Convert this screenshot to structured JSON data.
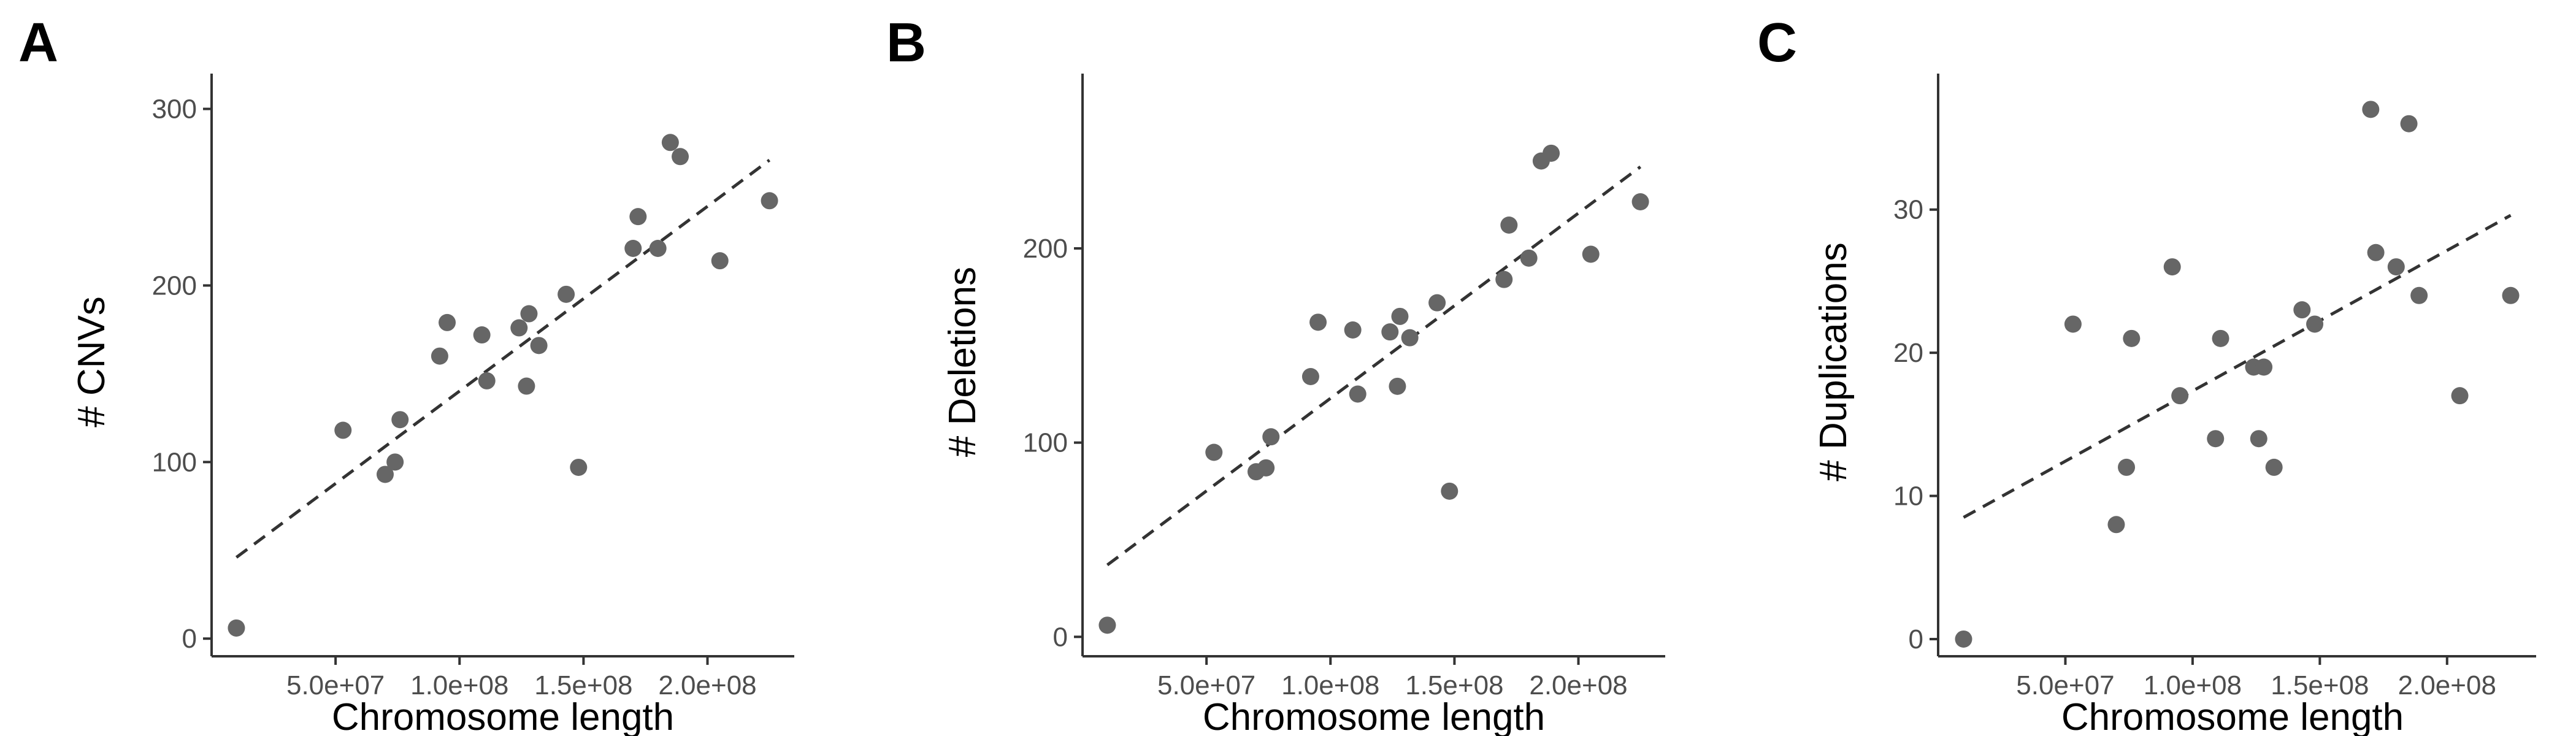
{
  "chart_data": [
    {
      "panel": "A",
      "type": "scatter",
      "xlabel": "Chromosome length",
      "ylabel": "# CNVs",
      "xlim": [
        0,
        235000000
      ],
      "ylim": [
        -10,
        320
      ],
      "xticks": [
        50000000,
        100000000,
        150000000,
        200000000
      ],
      "xtick_labels": [
        "5.0e+07",
        "1.0e+08",
        "1.5e+08",
        "2.0e+08"
      ],
      "yticks": [
        0,
        100,
        200,
        300
      ],
      "ytick_labels": [
        "0",
        "100",
        "200",
        "300"
      ],
      "grid": false,
      "point_color": "#666666",
      "trend_line": {
        "style": "dashed",
        "color": "#333333",
        "x": [
          10000000,
          225000000
        ],
        "y": [
          46,
          271
        ]
      },
      "points": [
        {
          "x": 10000000,
          "y": 6
        },
        {
          "x": 53000000,
          "y": 118
        },
        {
          "x": 70000000,
          "y": 93
        },
        {
          "x": 74000000,
          "y": 100
        },
        {
          "x": 76000000,
          "y": 124
        },
        {
          "x": 92000000,
          "y": 160
        },
        {
          "x": 95000000,
          "y": 179
        },
        {
          "x": 109000000,
          "y": 172
        },
        {
          "x": 111000000,
          "y": 146
        },
        {
          "x": 124000000,
          "y": 176
        },
        {
          "x": 127000000,
          "y": 143
        },
        {
          "x": 128000000,
          "y": 184
        },
        {
          "x": 132000000,
          "y": 166
        },
        {
          "x": 143000000,
          "y": 195
        },
        {
          "x": 148000000,
          "y": 97
        },
        {
          "x": 170000000,
          "y": 221
        },
        {
          "x": 172000000,
          "y": 239
        },
        {
          "x": 180000000,
          "y": 221
        },
        {
          "x": 185000000,
          "y": 281
        },
        {
          "x": 189000000,
          "y": 273
        },
        {
          "x": 205000000,
          "y": 214
        },
        {
          "x": 225000000,
          "y": 248
        }
      ]
    },
    {
      "panel": "B",
      "type": "scatter",
      "xlabel": "Chromosome length",
      "ylabel": "# Deletions",
      "xlim": [
        0,
        235000000
      ],
      "ylim": [
        -10,
        290
      ],
      "xticks": [
        50000000,
        100000000,
        150000000,
        200000000
      ],
      "xtick_labels": [
        "5.0e+07",
        "1.0e+08",
        "1.5e+08",
        "2.0e+08"
      ],
      "yticks": [
        0,
        100,
        200
      ],
      "ytick_labels": [
        "0",
        "100",
        "200"
      ],
      "grid": false,
      "point_color": "#666666",
      "trend_line": {
        "style": "dashed",
        "color": "#333333",
        "x": [
          10000000,
          225000000
        ],
        "y": [
          37,
          242
        ]
      },
      "points": [
        {
          "x": 10000000,
          "y": 6
        },
        {
          "x": 53000000,
          "y": 95
        },
        {
          "x": 70000000,
          "y": 85
        },
        {
          "x": 74000000,
          "y": 87
        },
        {
          "x": 76000000,
          "y": 103
        },
        {
          "x": 92000000,
          "y": 134
        },
        {
          "x": 95000000,
          "y": 162
        },
        {
          "x": 109000000,
          "y": 158
        },
        {
          "x": 111000000,
          "y": 125
        },
        {
          "x": 124000000,
          "y": 157
        },
        {
          "x": 127000000,
          "y": 129
        },
        {
          "x": 128000000,
          "y": 165
        },
        {
          "x": 132000000,
          "y": 154
        },
        {
          "x": 143000000,
          "y": 172
        },
        {
          "x": 148000000,
          "y": 75
        },
        {
          "x": 170000000,
          "y": 184
        },
        {
          "x": 172000000,
          "y": 212
        },
        {
          "x": 180000000,
          "y": 195
        },
        {
          "x": 185000000,
          "y": 245
        },
        {
          "x": 189000000,
          "y": 249
        },
        {
          "x": 205000000,
          "y": 197
        },
        {
          "x": 225000000,
          "y": 224
        }
      ]
    },
    {
      "panel": "C",
      "type": "scatter",
      "xlabel": "Chromosome length",
      "ylabel": "# Duplications",
      "xlim": [
        0,
        235000000
      ],
      "ylim": [
        -1.2,
        39.5
      ],
      "xticks": [
        50000000,
        100000000,
        150000000,
        200000000
      ],
      "xtick_labels": [
        "5.0e+07",
        "1.0e+08",
        "1.5e+08",
        "2.0e+08"
      ],
      "yticks": [
        0,
        10,
        20,
        30
      ],
      "ytick_labels": [
        "0",
        "10",
        "20",
        "30"
      ],
      "grid": false,
      "point_color": "#666666",
      "trend_line": {
        "style": "dashed",
        "color": "#333333",
        "x": [
          10000000,
          225000000
        ],
        "y": [
          8.5,
          29.6
        ]
      },
      "points": [
        {
          "x": 10000000,
          "y": 0
        },
        {
          "x": 53000000,
          "y": 22
        },
        {
          "x": 70000000,
          "y": 8
        },
        {
          "x": 74000000,
          "y": 12
        },
        {
          "x": 76000000,
          "y": 21
        },
        {
          "x": 92000000,
          "y": 26
        },
        {
          "x": 95000000,
          "y": 17
        },
        {
          "x": 109000000,
          "y": 14
        },
        {
          "x": 111000000,
          "y": 21
        },
        {
          "x": 124000000,
          "y": 19
        },
        {
          "x": 126000000,
          "y": 14
        },
        {
          "x": 128000000,
          "y": 19
        },
        {
          "x": 132000000,
          "y": 12
        },
        {
          "x": 143000000,
          "y": 23
        },
        {
          "x": 148000000,
          "y": 22
        },
        {
          "x": 170000000,
          "y": 37
        },
        {
          "x": 172000000,
          "y": 27
        },
        {
          "x": 180000000,
          "y": 26
        },
        {
          "x": 185000000,
          "y": 36
        },
        {
          "x": 189000000,
          "y": 24
        },
        {
          "x": 205000000,
          "y": 17
        },
        {
          "x": 225000000,
          "y": 24
        }
      ]
    }
  ]
}
